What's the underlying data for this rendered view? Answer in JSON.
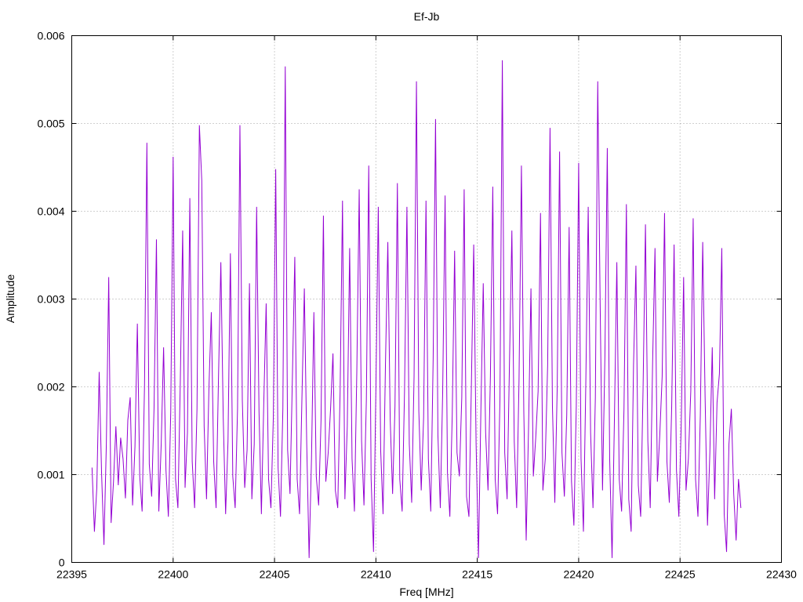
{
  "chart_data": {
    "type": "line",
    "title": "Ef-Jb",
    "xlabel": "Freq [MHz]",
    "ylabel": "Amplitude",
    "xlim": [
      22395,
      22430
    ],
    "ylim": [
      0,
      0.006
    ],
    "x_ticks": [
      22395,
      22400,
      22405,
      22410,
      22415,
      22420,
      22425,
      22430
    ],
    "y_ticks": [
      0,
      0.001,
      0.002,
      0.003,
      0.004,
      0.005,
      0.006
    ],
    "x_tick_labels": [
      "22395",
      "22400",
      "22405",
      "22410",
      "22415",
      "22420",
      "22425",
      "22430"
    ],
    "y_tick_labels": [
      "0",
      "0.001",
      "0.002",
      "0.003",
      "0.004",
      "0.005",
      "0.006"
    ],
    "grid": true,
    "legend": "none",
    "series_color": "#9400d3",
    "series": [
      {
        "x_start": 22396.0,
        "x_end": 22428.0,
        "values": [
          0.00108,
          0.00035,
          0.00085,
          0.00217,
          0.00102,
          0.0002,
          0.00135,
          0.00325,
          0.00045,
          0.00092,
          0.00155,
          0.00088,
          0.00142,
          0.00118,
          0.00073,
          0.00162,
          0.00188,
          0.00065,
          0.00132,
          0.00272,
          0.00098,
          0.00058,
          0.00201,
          0.00478,
          0.00112,
          0.00075,
          0.00176,
          0.00368,
          0.00058,
          0.00135,
          0.00245,
          0.00105,
          0.00052,
          0.00171,
          0.00462,
          0.00095,
          0.00062,
          0.00205,
          0.00378,
          0.00085,
          0.00148,
          0.00415,
          0.00115,
          0.00062,
          0.00175,
          0.00498,
          0.00435,
          0.00155,
          0.00072,
          0.00198,
          0.00285,
          0.00115,
          0.00062,
          0.00208,
          0.00342,
          0.00165,
          0.00055,
          0.00138,
          0.00352,
          0.00098,
          0.00062,
          0.00175,
          0.00498,
          0.00185,
          0.00085,
          0.00128,
          0.00318,
          0.00072,
          0.00135,
          0.00405,
          0.00172,
          0.00055,
          0.00182,
          0.00295,
          0.00095,
          0.00062,
          0.00165,
          0.00448,
          0.00108,
          0.00052,
          0.00175,
          0.00565,
          0.00128,
          0.00078,
          0.00212,
          0.00348,
          0.00095,
          0.00055,
          0.00188,
          0.00312,
          0.00135,
          5e-05,
          0.00118,
          0.00285,
          0.00098,
          0.00065,
          0.00162,
          0.00395,
          0.00092,
          0.00125,
          0.00175,
          0.00238,
          0.00082,
          0.00062,
          0.00195,
          0.00412,
          0.00072,
          0.00155,
          0.00358,
          0.00118,
          0.00058,
          0.00218,
          0.00425,
          0.00138,
          0.00065,
          0.00185,
          0.00452,
          0.00095,
          0.00012,
          0.00198,
          0.00405,
          0.00128,
          0.00055,
          0.00225,
          0.00365,
          0.00162,
          0.00078,
          0.00178,
          0.00432,
          0.00095,
          0.00058,
          0.00195,
          0.00405,
          0.00135,
          0.00068,
          0.00212,
          0.00548,
          0.00172,
          0.00082,
          0.00165,
          0.00412,
          0.00118,
          0.00058,
          0.00232,
          0.00505,
          0.00145,
          0.00062,
          0.00195,
          0.00418,
          0.00102,
          0.00052,
          0.00168,
          0.00355,
          0.00125,
          0.00098,
          0.00188,
          0.00425,
          0.00075,
          0.00052,
          0.00198,
          0.00362,
          0.00135,
          5e-05,
          0.00172,
          0.00318,
          0.00148,
          0.00082,
          0.00212,
          0.00428,
          0.00095,
          0.00055,
          0.00185,
          0.00572,
          0.00125,
          0.00072,
          0.00228,
          0.00378,
          0.00138,
          0.00062,
          0.00208,
          0.00452,
          0.00172,
          0.00025,
          0.00155,
          0.00312,
          0.00098,
          0.00142,
          0.00195,
          0.00398,
          0.00082,
          0.00118,
          0.00225,
          0.00495,
          0.00178,
          0.00068,
          0.00198,
          0.00468,
          0.00125,
          0.00075,
          0.00168,
          0.00382,
          0.00092,
          0.00042,
          0.00178,
          0.00455,
          0.00118,
          0.00035,
          0.00205,
          0.00405,
          0.00148,
          0.00062,
          0.00188,
          0.00548,
          0.00295,
          0.00082,
          0.00235,
          0.00472,
          0.00118,
          5e-05,
          0.00165,
          0.00342,
          0.00095,
          0.00058,
          0.00175,
          0.00408,
          0.00072,
          0.00035,
          0.00225,
          0.00338,
          0.00088,
          0.00052,
          0.00198,
          0.00385,
          0.00138,
          0.00062,
          0.00228,
          0.00358,
          0.00092,
          0.00145,
          0.00212,
          0.00398,
          0.00115,
          0.00068,
          0.00178,
          0.00362,
          0.00105,
          0.00052,
          0.00158,
          0.00325,
          0.00082,
          0.00118,
          0.00195,
          0.00392,
          0.00095,
          0.00052,
          0.00168,
          0.00365,
          0.00188,
          0.00042,
          0.00125,
          0.00245,
          0.00072,
          0.00182,
          0.00215,
          0.00358,
          0.00055,
          0.00012,
          0.00135,
          0.00175,
          0.00078,
          0.00025,
          0.00095,
          0.00062
        ]
      }
    ]
  }
}
